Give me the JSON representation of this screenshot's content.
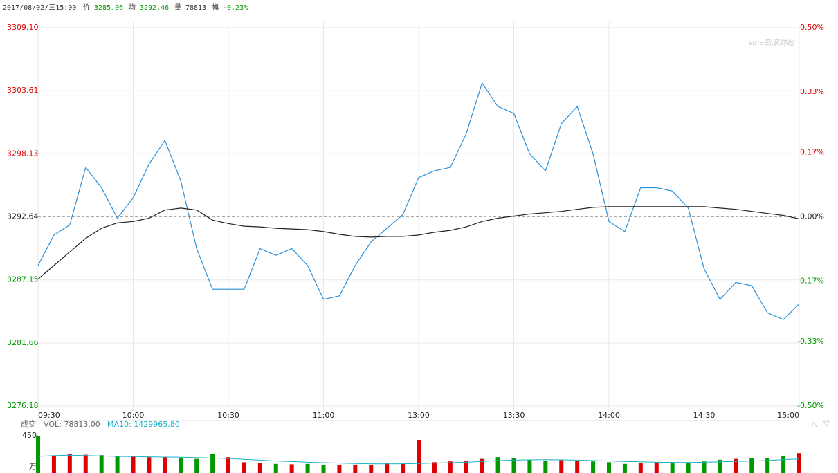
{
  "header": {
    "datetime": "2017/08/02/三15:00",
    "price_label": "价",
    "price": "3285.06",
    "avg_label": "均",
    "avg": "3292.46",
    "vol_label": "量",
    "vol": "78813",
    "change_label": "幅",
    "change": "-0.23%"
  },
  "watermark": "sina新浪财经",
  "chart_data": [
    {
      "type": "line",
      "x": [
        "09:30",
        "09:35",
        "09:40",
        "09:45",
        "09:50",
        "09:55",
        "10:00",
        "10:05",
        "10:10",
        "10:15",
        "10:20",
        "10:25",
        "10:30",
        "10:35",
        "10:40",
        "10:45",
        "10:50",
        "10:55",
        "11:00",
        "11:05",
        "11:10",
        "11:15",
        "11:20",
        "11:25",
        "13:00",
        "13:05",
        "13:10",
        "13:15",
        "13:20",
        "13:25",
        "13:30",
        "13:35",
        "13:40",
        "13:45",
        "13:50",
        "13:55",
        "14:00",
        "14:05",
        "14:10",
        "14:15",
        "14:20",
        "14:25",
        "14:30",
        "14:35",
        "14:40",
        "14:45",
        "14:50",
        "14:55",
        "15:00"
      ],
      "xticks": [
        "09:30",
        "10:00",
        "10:30",
        "11:00",
        "13:00",
        "13:30",
        "14:00",
        "14:30",
        "15:00"
      ],
      "series": [
        {
          "color": "#2a8fd6",
          "values": [
            3288.4,
            3291.05,
            3291.93,
            3296.94,
            3295.17,
            3292.52,
            3294.29,
            3297.23,
            3299.29,
            3295.76,
            3289.87,
            3286.34,
            3286.34,
            3286.34,
            3289.87,
            3289.29,
            3289.87,
            3288.4,
            3285.46,
            3285.76,
            3288.4,
            3290.46,
            3291.64,
            3292.82,
            3296.05,
            3296.64,
            3296.94,
            3299.88,
            3304.29,
            3302.23,
            3301.64,
            3298.11,
            3296.64,
            3300.76,
            3302.23,
            3298.11,
            3292.23,
            3291.35,
            3295.17,
            3295.17,
            3294.88,
            3293.4,
            3288.11,
            3285.46,
            3286.93,
            3286.64,
            3284.28,
            3283.7,
            3285.06
          ]
        },
        {
          "color": "#222222",
          "values": [
            3287.23,
            3288.4,
            3289.58,
            3290.76,
            3291.64,
            3292.11,
            3292.23,
            3292.52,
            3293.23,
            3293.4,
            3293.23,
            3292.35,
            3292.05,
            3291.82,
            3291.76,
            3291.64,
            3291.58,
            3291.52,
            3291.35,
            3291.11,
            3290.93,
            3290.87,
            3290.93,
            3290.93,
            3291.05,
            3291.29,
            3291.46,
            3291.76,
            3292.23,
            3292.52,
            3292.7,
            3292.88,
            3292.99,
            3293.11,
            3293.29,
            3293.46,
            3293.52,
            3293.52,
            3293.52,
            3293.52,
            3293.52,
            3293.52,
            3293.52,
            3293.4,
            3293.29,
            3293.11,
            3292.93,
            3292.76,
            3292.46
          ]
        }
      ],
      "ylim": [
        3276.18,
        3309.1
      ],
      "yticks": [
        3276.18,
        3281.66,
        3287.15,
        3292.64,
        3298.13,
        3303.61,
        {
          "value": 3309.1,
          "label": "3309.10"
        }
      ],
      "y2lim": [
        -0.5,
        0.5
      ],
      "y2ticks": [
        {
          "value": -0.5,
          "label": "-0.50%"
        },
        {
          "value": -0.33,
          "label": "-0.33%"
        },
        {
          "value": -0.17,
          "label": "-0.17%"
        },
        {
          "value": 0,
          "label": "0.00%"
        },
        {
          "value": 0.17,
          "label": "0.17%"
        },
        {
          "value": 0.33,
          "label": "0.33%"
        },
        {
          "value": 0.5,
          "label": "0.50%"
        }
      ],
      "up_color": "#e00000",
      "down_color": "#009900",
      "grid": true
    },
    {
      "type": "bar",
      "title": "成交",
      "unit": "万",
      "series": [
        {
          "name": "VOL: 78813.00",
          "color": "#666666",
          "values": [
            450,
            210,
            230,
            220,
            215,
            205,
            200,
            190,
            195,
            185,
            170,
            230,
            190,
            130,
            120,
            110,
            105,
            110,
            100,
            95,
            100,
            95,
            120,
            110,
            400,
            130,
            140,
            150,
            170,
            190,
            180,
            160,
            150,
            155,
            150,
            140,
            130,
            110,
            120,
            130,
            125,
            120,
            140,
            160,
            170,
            175,
            180,
            200,
            240
          ]
        },
        {
          "name": "MA10: 1429965.80",
          "color": "#1ab1c7",
          "values": [
            200,
            210,
            215,
            210,
            205,
            200,
            198,
            195,
            192,
            190,
            185,
            180,
            175,
            165,
            155,
            145,
            138,
            130,
            125,
            120,
            115,
            112,
            110,
            112,
            115,
            120,
            125,
            130,
            140,
            150,
            155,
            158,
            160,
            158,
            155,
            150,
            145,
            140,
            135,
            130,
            128,
            127,
            130,
            135,
            140,
            145,
            150,
            160,
            170
          ]
        }
      ],
      "ylim": [
        0,
        450
      ],
      "yticks": [
        450
      ],
      "up_color": "#e00000",
      "down_color": "#009900"
    }
  ]
}
